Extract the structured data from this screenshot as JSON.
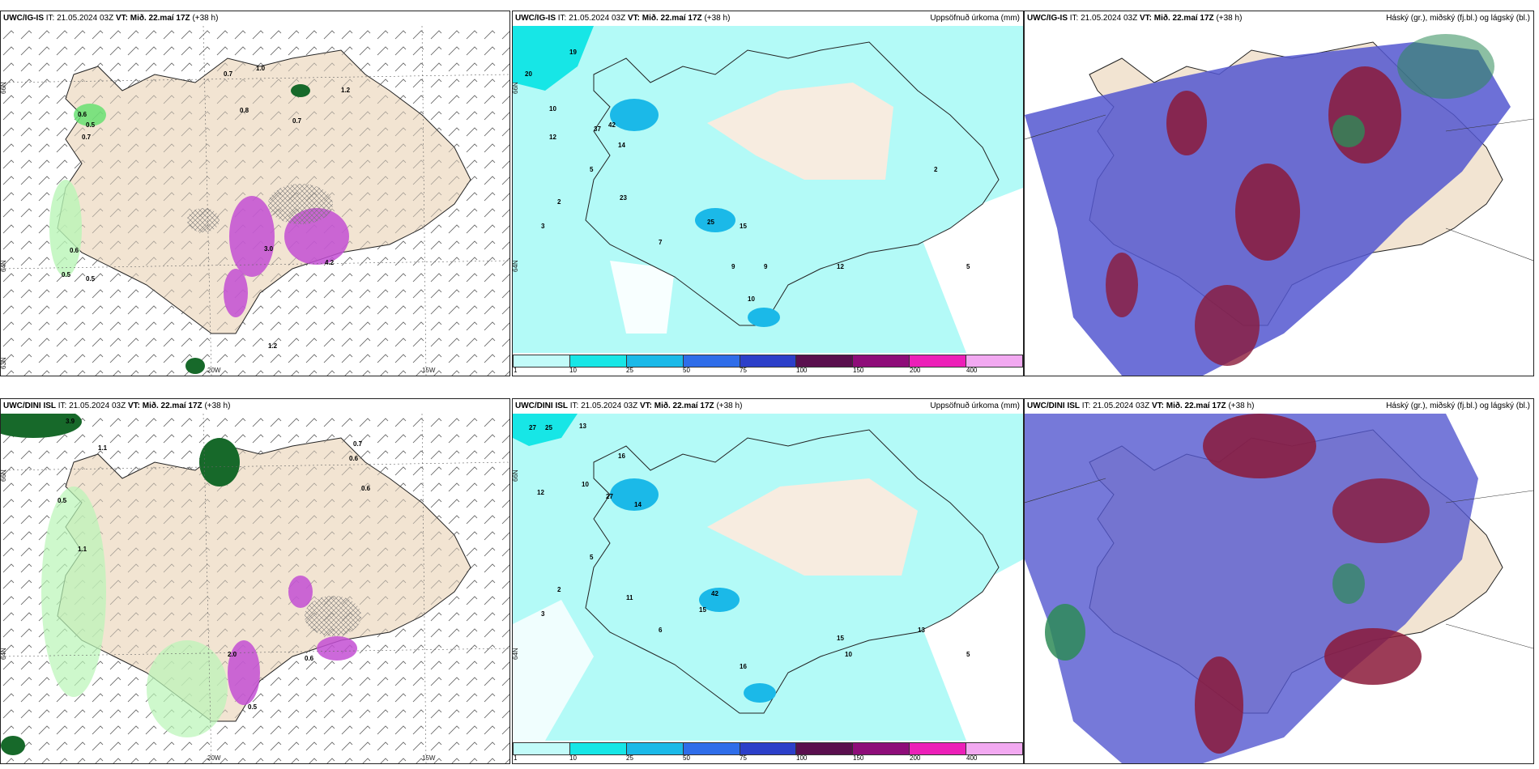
{
  "panels": [
    {
      "id": "p1",
      "model": "UWC/IG-IS",
      "it": "IT: 21.05.2024 03Z",
      "vt": "VT: Mið. 22.maí 17Z",
      "lead": "(+38 h)",
      "right": "",
      "grid": {
        "lat1": "66N",
        "lat2": "64N",
        "lat3": "63N",
        "lon1": "20W",
        "lon2": "15W"
      }
    },
    {
      "id": "p2",
      "model": "UWC/IG-IS",
      "it": "IT: 21.05.2024 03Z",
      "vt": "VT: Mið. 22.maí 17Z",
      "lead": "(+38 h)",
      "right": "Uppsöfnuð úrkoma (mm)",
      "grid": {
        "lat1": "66N",
        "lat2": "64N"
      }
    },
    {
      "id": "p3",
      "model": "UWC/IG-IS",
      "it": "IT: 21.05.2024 03Z",
      "vt": "VT: Mið. 22.maí 17Z",
      "lead": "(+38 h)",
      "right": "Háský (gr.), miðský (fj.bl.) og lágský (bl.)"
    },
    {
      "id": "p4",
      "model": "UWC/DINI ISL",
      "it": "IT: 21.05.2024 03Z",
      "vt": "VT: Mið. 22.maí 17Z",
      "lead": "(+38 h)",
      "right": "",
      "grid": {
        "lat1": "66N",
        "lat2": "64N",
        "lon1": "20W",
        "lon2": "15W"
      }
    },
    {
      "id": "p5",
      "model": "UWC/DINI ISL",
      "it": "IT: 21.05.2024 03Z",
      "vt": "VT: Mið. 22.maí 17Z",
      "lead": "(+38 h)",
      "right": "Uppsöfnuð úrkoma (mm)",
      "grid": {
        "lat1": "66N",
        "lat2": "64N"
      }
    },
    {
      "id": "p6",
      "model": "UWC/DINI ISL",
      "it": "IT: 21.05.2024 03Z",
      "vt": "VT: Mið. 22.maí 17Z",
      "lead": "(+38 h)",
      "right": "Háský (gr.), miðský (fj.bl.) og lágský (bl.)"
    }
  ],
  "legend": {
    "ticks": [
      "1",
      "10",
      "25",
      "50",
      "75",
      "100",
      "150",
      "200",
      "400"
    ],
    "colors": [
      "#c2fbf9",
      "#17e6e6",
      "#1bb9e8",
      "#2f6de9",
      "#2c3fc9",
      "#5a0f4e",
      "#8e0d79",
      "#ec1fb8",
      "#f2a9f1"
    ]
  },
  "colors": {
    "land": "#f2e4d2",
    "precip_bg": "#b3faf7",
    "cloud_bg": "#5457d0",
    "cloud_high": "#2e8b57",
    "cloud_mid": "#8b1a3a",
    "cloud_low": "#3b3bb8",
    "green": "#5fe06c",
    "darkgreen": "#17692a",
    "magenta": "#c34fd4"
  },
  "p1_labels": [
    "0.7",
    "1.0",
    "1.2",
    "0.8",
    "0.7",
    "0.6",
    "0.5",
    "0.7",
    "0.6",
    "0.5",
    "0.5",
    "3.0",
    "4.2",
    "1.2"
  ],
  "p2_labels": [
    "19",
    "20",
    "10",
    "12",
    "42",
    "37",
    "14",
    "23",
    "2",
    "3",
    "5",
    "7",
    "25",
    "15",
    "10",
    "12",
    "9",
    "9",
    "2",
    "5"
  ],
  "p4_labels": [
    "3.9",
    "1.1",
    "0.7",
    "0.6",
    "0.5",
    "1.1",
    "0.6",
    "2.0",
    "0.5",
    "0.6"
  ],
  "p5_labels": [
    "27",
    "25",
    "13",
    "16",
    "10",
    "27",
    "14",
    "12",
    "2",
    "3",
    "5",
    "6",
    "42",
    "15",
    "16",
    "15",
    "11",
    "10",
    "13",
    "5"
  ]
}
